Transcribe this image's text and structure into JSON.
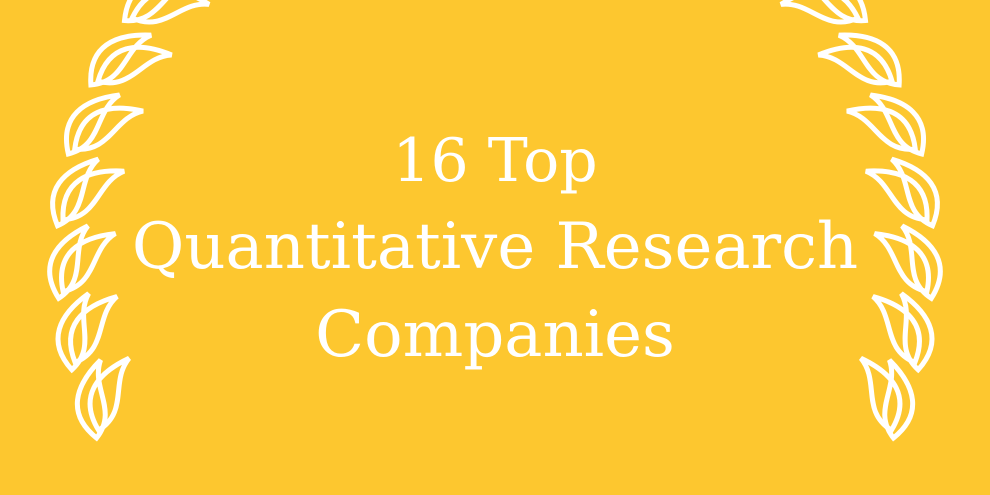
{
  "background_color": "#FDC72F",
  "text_color": "#FFFFFF",
  "decoration": "laurel-wreath",
  "title": {
    "line1": "16 Top",
    "line2": "Quantitative Research",
    "line3": "Companies"
  }
}
